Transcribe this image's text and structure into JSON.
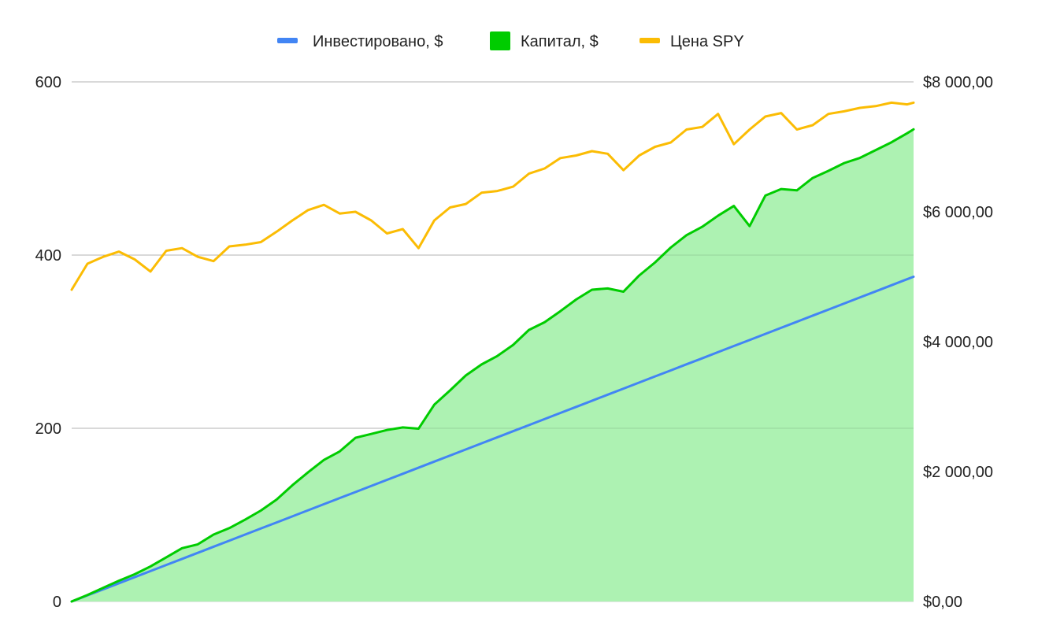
{
  "chart_data": {
    "type": "line",
    "title": "",
    "xlabel": "",
    "ylabel_left": "",
    "ylabel_right": "",
    "grid": true,
    "legend_position": "top-center",
    "left_axis": {
      "ylim": [
        0,
        600
      ],
      "ticks": [
        0,
        200,
        400,
        600
      ],
      "tick_labels": [
        "0",
        "200",
        "400",
        "600"
      ]
    },
    "right_axis": {
      "ylim": [
        0,
        8000
      ],
      "ticks": [
        0,
        2000,
        4000,
        6000,
        8000
      ],
      "tick_labels": [
        "$0,00",
        "$2 000,00",
        "$4 000,00",
        "$6 000,00",
        "$8 000,00"
      ]
    },
    "x": [
      0,
      20,
      40,
      60,
      80,
      100,
      120,
      140,
      160,
      180,
      200,
      220,
      240,
      260,
      280,
      300,
      320,
      340,
      360,
      380,
      400,
      420,
      440,
      460,
      480,
      500,
      520,
      540,
      560,
      580,
      600,
      620,
      640,
      660,
      680,
      700,
      720,
      740,
      760,
      780,
      800,
      820,
      840,
      860,
      880,
      900,
      920,
      940,
      960,
      980,
      1000,
      1020,
      1040,
      1060,
      1068
    ],
    "series": [
      {
        "name": "Инвестировано, $",
        "axis": "right",
        "kind": "line",
        "color": "#4285f4",
        "values": [
          0,
          94,
          187,
          281,
          375,
          468,
          562,
          655,
          749,
          843,
          936,
          1030,
          1124,
          1217,
          1311,
          1405,
          1498,
          1592,
          1685,
          1779,
          1873,
          1966,
          2060,
          2154,
          2247,
          2341,
          2435,
          2528,
          2622,
          2715,
          2809,
          2903,
          2996,
          3090,
          3184,
          3277,
          3371,
          3465,
          3558,
          3652,
          3745,
          3839,
          3933,
          4026,
          4120,
          4214,
          4307,
          4401,
          4494,
          4588,
          4682,
          4775,
          4869,
          4963,
          5000
        ]
      },
      {
        "name": "Капитал, $",
        "axis": "right",
        "kind": "area",
        "color": "#00cc00",
        "fill": "#adf2b2",
        "values": [
          0,
          100,
          210,
          320,
          420,
          540,
          680,
          820,
          880,
          1030,
          1130,
          1260,
          1400,
          1570,
          1790,
          1990,
          2180,
          2310,
          2520,
          2580,
          2640,
          2680,
          2660,
          3030,
          3250,
          3480,
          3650,
          3780,
          3950,
          4180,
          4300,
          4470,
          4650,
          4800,
          4820,
          4770,
          5020,
          5220,
          5450,
          5640,
          5770,
          5940,
          6090,
          5780,
          6250,
          6350,
          6330,
          6520,
          6630,
          6750,
          6830,
          6950,
          7070,
          7210,
          7270
        ]
      },
      {
        "name": "Цена SPY",
        "axis": "left",
        "kind": "line",
        "color": "#fbbc04",
        "values": [
          360,
          390,
          398,
          404,
          395,
          381,
          405,
          408,
          398,
          393,
          410,
          412,
          415,
          427,
          440,
          452,
          458,
          448,
          450,
          440,
          425,
          430,
          408,
          440,
          455,
          459,
          472,
          474,
          479,
          494,
          500,
          512,
          515,
          520,
          517,
          498,
          515,
          525,
          530,
          545,
          548,
          563,
          528,
          545,
          560,
          564,
          545,
          550,
          563,
          566,
          570,
          572,
          576,
          574,
          576
        ]
      }
    ]
  }
}
